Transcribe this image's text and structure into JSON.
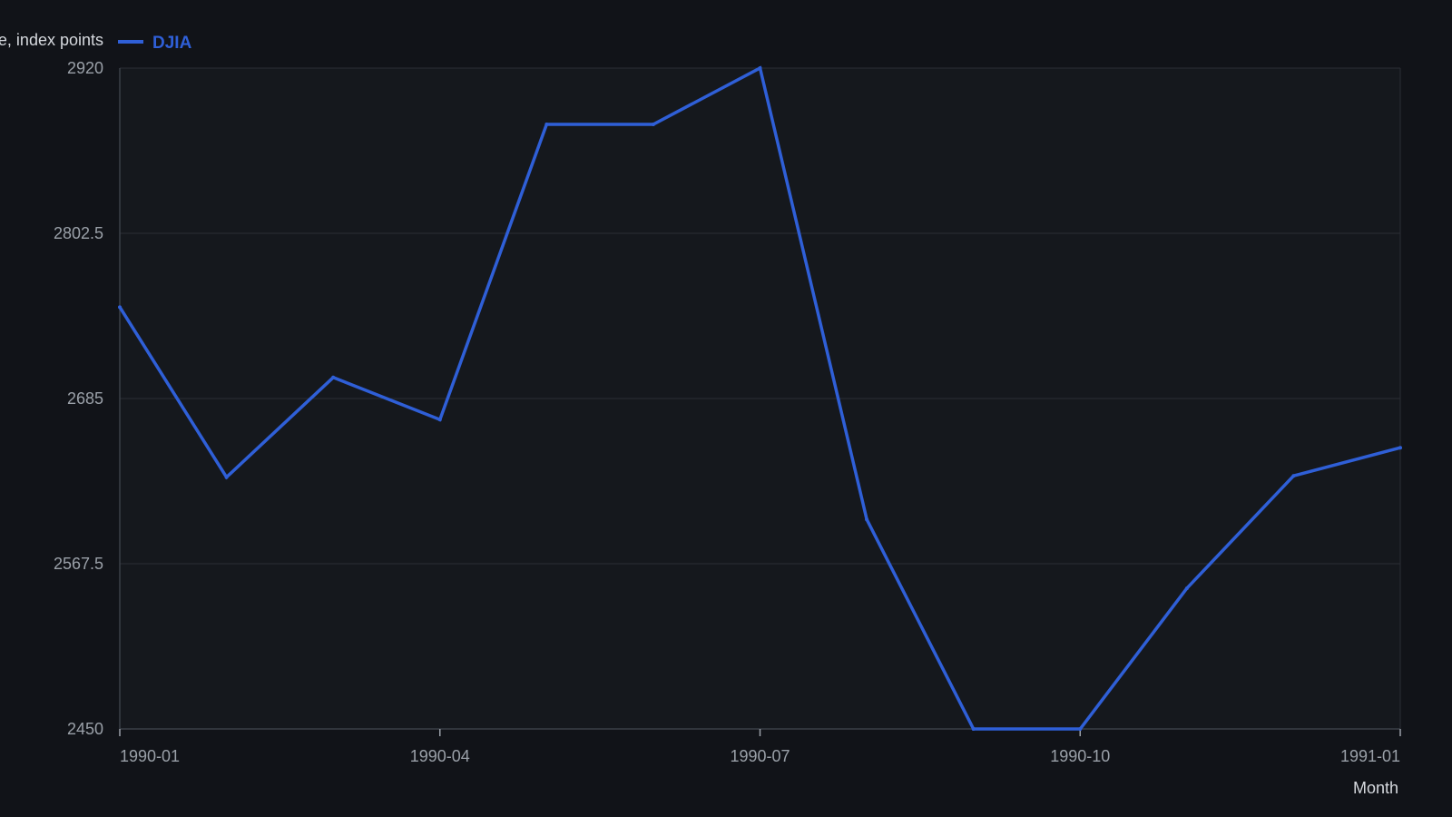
{
  "chart_data": {
    "type": "line",
    "title": "",
    "ylabel": "Close, index points",
    "xlabel": "Month",
    "x": [
      "1990-01",
      "1990-02",
      "1990-03",
      "1990-04",
      "1990-05",
      "1990-06",
      "1990-07",
      "1990-08",
      "1990-09",
      "1990-10",
      "1990-11",
      "1990-12",
      "1991-01"
    ],
    "series": [
      {
        "name": "DJIA",
        "color": "#2f5fd7",
        "values": [
          2750,
          2629,
          2700,
          2670,
          2880,
          2880,
          2920,
          2599,
          2450,
          2450,
          2550,
          2630,
          2650
        ]
      }
    ],
    "ylim": [
      2450,
      2920
    ],
    "yticks": [
      "2450",
      "2567.5",
      "2685",
      "2802.5",
      "2920"
    ],
    "xticks": [
      "1990-01",
      "1990-04",
      "1990-07",
      "1990-10",
      "1991-01"
    ],
    "grid": true,
    "legend_position": "top-left"
  }
}
